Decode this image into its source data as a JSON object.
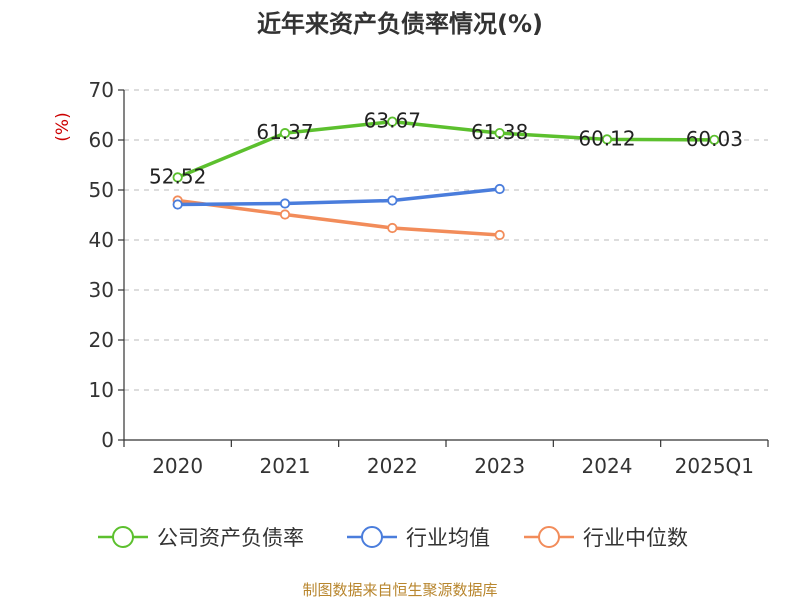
{
  "chart_data": {
    "type": "line",
    "title": "近年来资产负债率情况(%)",
    "ylabel": "(%)",
    "xlabel": "",
    "categories": [
      "2020",
      "2021",
      "2022",
      "2023",
      "2024",
      "2025Q1"
    ],
    "ylim": [
      0,
      70
    ],
    "yticks": [
      0,
      10,
      20,
      30,
      40,
      50,
      60,
      70
    ],
    "grid": true,
    "legend_position": "bottom",
    "series": [
      {
        "name": "公司资产负债率",
        "color": "#5cc02e",
        "values": [
          52.52,
          61.37,
          63.67,
          61.38,
          60.12,
          60.03
        ],
        "show_labels": true
      },
      {
        "name": "行业均值",
        "color": "#4a7ddc",
        "values": [
          47.1,
          47.3,
          47.9,
          50.2,
          null,
          null
        ],
        "show_labels": false
      },
      {
        "name": "行业中位数",
        "color": "#f28c5a",
        "values": [
          47.9,
          45.1,
          42.4,
          41.0,
          null,
          null
        ],
        "show_labels": false
      }
    ]
  },
  "source_text": "制图数据来自恒生聚源数据库"
}
